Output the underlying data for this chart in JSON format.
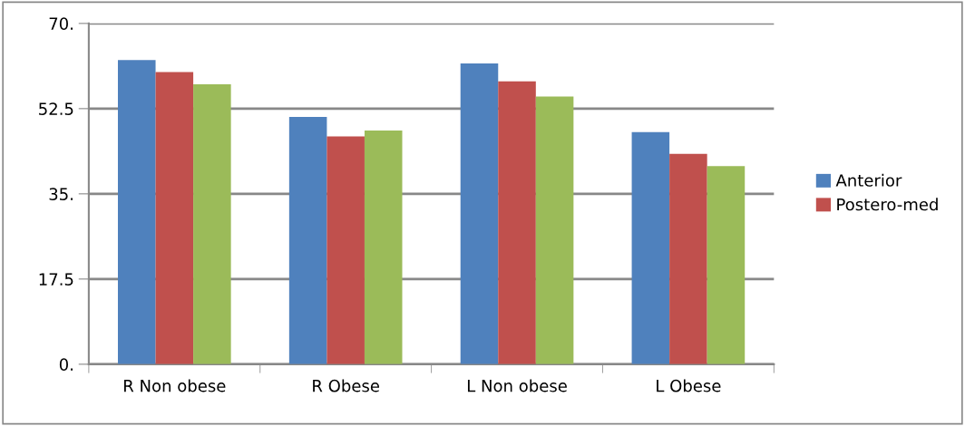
{
  "chart_data": {
    "type": "bar",
    "categories": [
      "R Non obese",
      "R Obese",
      "L Non obese",
      "L Obese"
    ],
    "series": [
      {
        "name": "Anterior",
        "color": "#4f81bd",
        "values": [
          62.5,
          50.8,
          61.8,
          47.7
        ]
      },
      {
        "name": "Postero-med",
        "color": "#c0504d",
        "values": [
          60.0,
          46.8,
          58.1,
          43.2
        ]
      },
      {
        "color": "#9bbb59",
        "values": [
          57.5,
          48.0,
          55.0,
          40.7
        ]
      }
    ],
    "ylim": [
      0,
      70
    ],
    "yticks": [
      {
        "value": 0,
        "label": "0."
      },
      17.5,
      {
        "value": 35,
        "label": "35."
      },
      52.5,
      {
        "value": 70,
        "label": "70."
      }
    ],
    "grid": "y",
    "legend": "right"
  }
}
